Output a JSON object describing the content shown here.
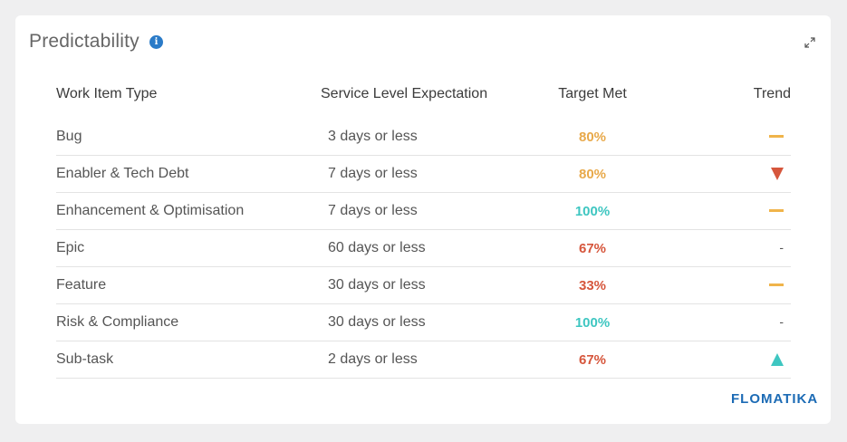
{
  "widget": {
    "title": "Predictability",
    "logo_text": "FLOMATIKA",
    "info_icon": "info-icon",
    "expand_icon": "expand-icon"
  },
  "table": {
    "headers": [
      "Work Item Type",
      "Service Level Expectation",
      "Target Met",
      "Trend"
    ],
    "rows": [
      {
        "type": "Bug",
        "sle": "3 days or less",
        "target": "80%",
        "target_color": "#e8a94a",
        "trend": "flat"
      },
      {
        "type": "Enabler & Tech Debt",
        "sle": "7 days or less",
        "target": "80%",
        "target_color": "#e8a94a",
        "trend": "down"
      },
      {
        "type": "Enhancement & Optimisation",
        "sle": "7 days or less",
        "target": "100%",
        "target_color": "#3ec6c1",
        "trend": "flat"
      },
      {
        "type": "Epic",
        "sle": "60 days or less",
        "target": "67%",
        "target_color": "#d6563c",
        "trend": "none",
        "trend_text": "-"
      },
      {
        "type": "Feature",
        "sle": "30 days or less",
        "target": "33%",
        "target_color": "#d6563c",
        "trend": "flat"
      },
      {
        "type": "Risk & Compliance",
        "sle": "30 days or less",
        "target": "100%",
        "target_color": "#3ec6c1",
        "trend": "none",
        "trend_text": "-"
      },
      {
        "type": "Sub-task",
        "sle": "2 days or less",
        "target": "67%",
        "target_color": "#d6563c",
        "trend": "up"
      }
    ]
  }
}
